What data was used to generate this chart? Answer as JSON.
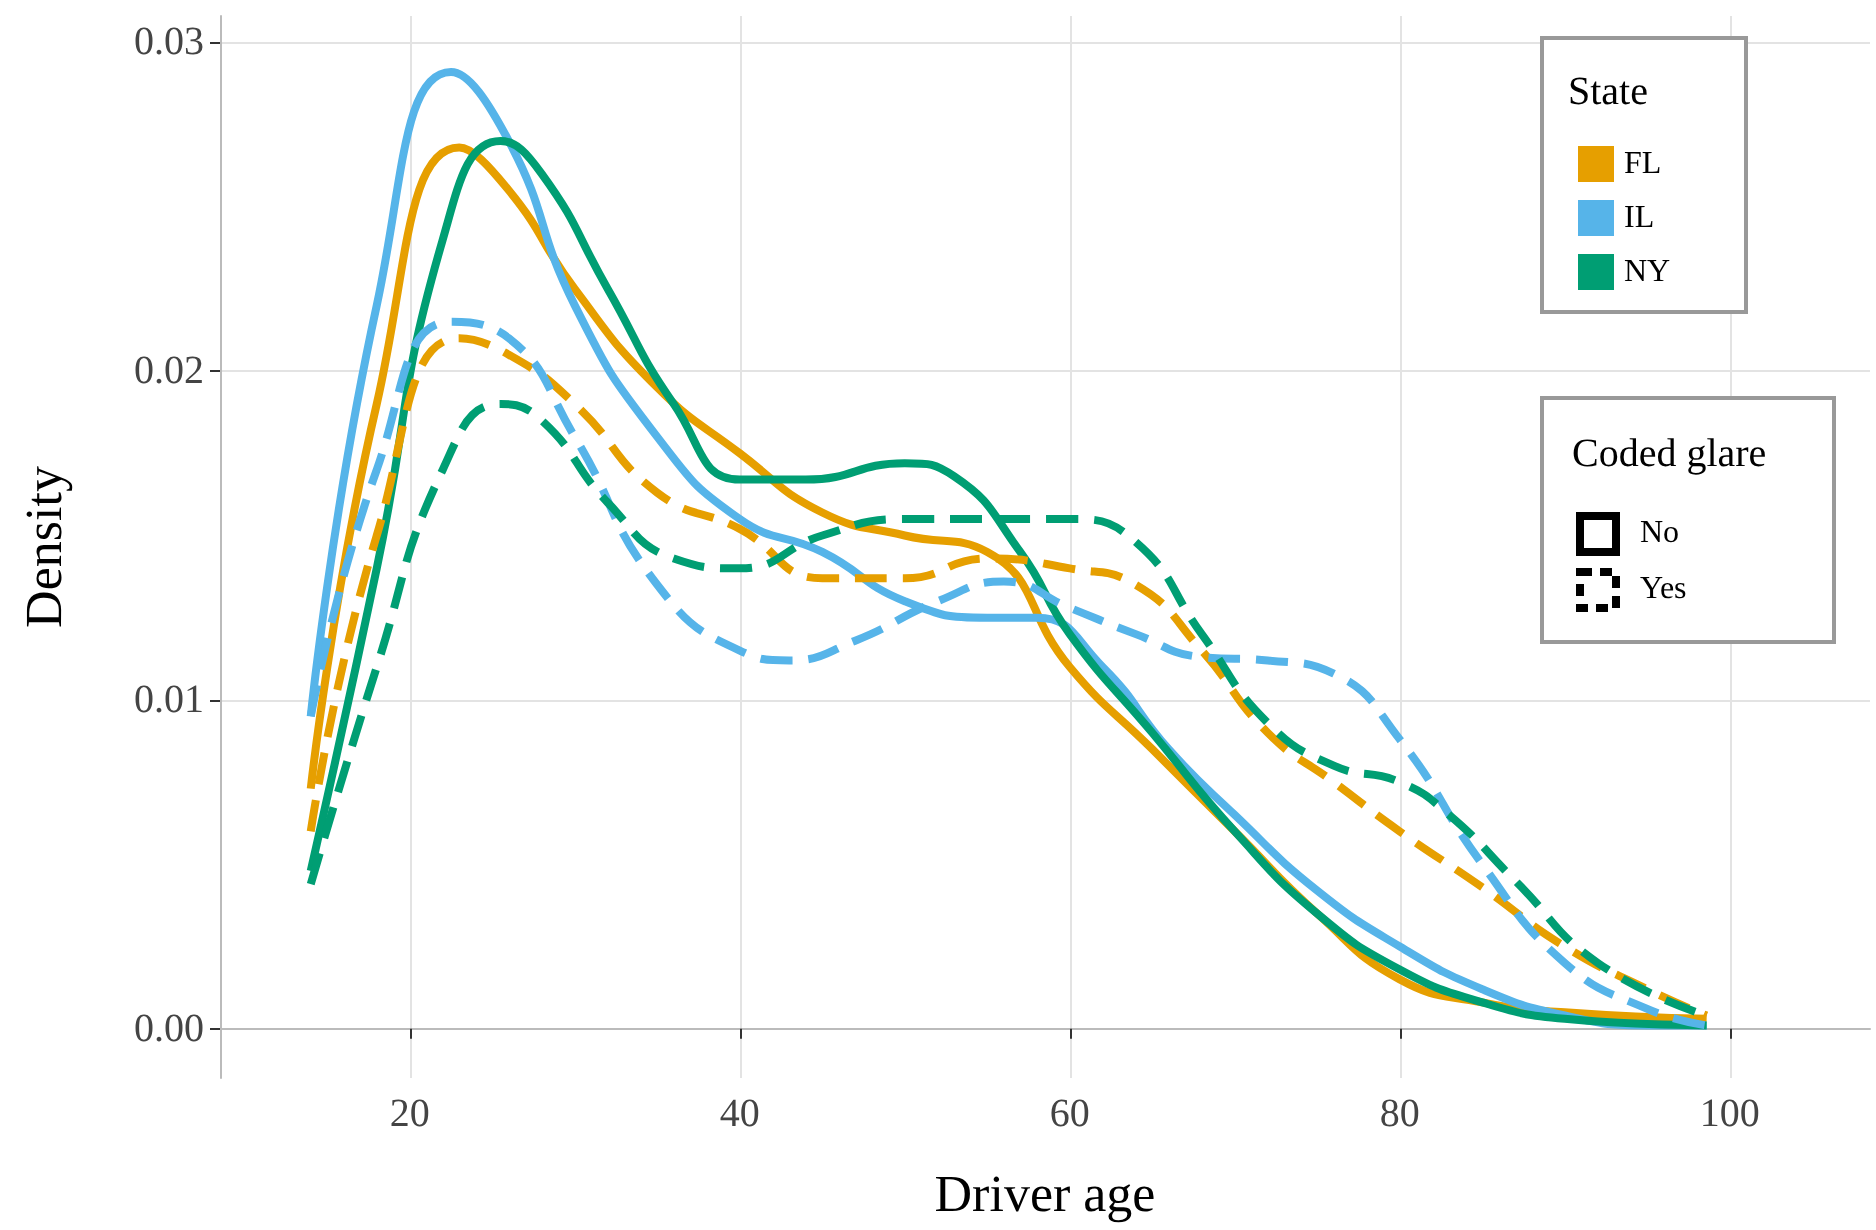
{
  "chart_data": {
    "type": "line",
    "xlabel": "Driver age",
    "ylabel": "Density",
    "legend_title": "State",
    "xlim": [
      8.5,
      108.5
    ],
    "ylim": [
      -0.0015,
      0.0308
    ],
    "xticks": [
      20,
      40,
      60,
      80,
      100
    ],
    "yticks": [
      {
        "value": 0,
        "label": "0.00"
      },
      {
        "value": 0.01,
        "label": "0.01"
      },
      {
        "value": 0.02,
        "label": "0.02"
      },
      {
        "value": 0.03,
        "label": "0.03"
      }
    ],
    "grid": true,
    "legend": "top right",
    "marker": "none",
    "annotations": [
      "Coded glare",
      "No",
      "Yes"
    ],
    "series": [
      {
        "name": "FL",
        "color": "#e69f00",
        "line_style": "solid",
        "x": [
          14,
          18,
          23,
          26,
          30,
          35,
          40,
          45,
          50,
          55,
          60,
          65,
          70,
          75,
          80,
          85,
          90,
          98.6
        ],
        "values": [
          0.0073,
          0.019,
          0.0268,
          0.0255,
          0.0225,
          0.0195,
          0.0175,
          0.0157,
          0.015,
          0.0145,
          0.011,
          0.0085,
          0.006,
          0.0035,
          0.0015,
          0.0008,
          0.0005,
          0.0003
        ]
      },
      {
        "name": "IL",
        "color": "#56b4e9",
        "line_style": "solid",
        "x": [
          14,
          18,
          22.5,
          26,
          30,
          35,
          40,
          45,
          50,
          55,
          58,
          62,
          66,
          70,
          75,
          80,
          85,
          90,
          95,
          98.6
        ],
        "values": [
          0.0095,
          0.022,
          0.0291,
          0.027,
          0.022,
          0.018,
          0.0155,
          0.0145,
          0.013,
          0.0125,
          0.0125,
          0.011,
          0.0085,
          0.0065,
          0.0042,
          0.0025,
          0.0012,
          0.0004,
          0.0001,
          0.0001
        ]
      },
      {
        "name": "NY",
        "color": "#009e73",
        "line_style": "solid",
        "x": [
          14,
          18,
          22,
          25.5,
          28,
          32,
          36,
          40,
          44,
          50,
          53,
          57,
          60,
          65,
          70,
          75,
          80,
          85,
          90,
          98.6
        ],
        "values": [
          0.0048,
          0.014,
          0.024,
          0.027,
          0.026,
          0.0225,
          0.019,
          0.0167,
          0.0167,
          0.0172,
          0.0168,
          0.0145,
          0.012,
          0.009,
          0.006,
          0.0035,
          0.0018,
          0.0008,
          0.0003,
          0.0001
        ]
      },
      {
        "color": "#e69f00",
        "line_style": "dashed",
        "x": [
          14,
          18,
          23,
          26,
          30,
          35,
          40,
          45,
          50,
          55,
          60,
          64,
          68,
          72,
          76,
          80,
          85,
          90,
          95,
          98.6
        ],
        "values": [
          0.006,
          0.015,
          0.021,
          0.0205,
          0.019,
          0.0163,
          0.0152,
          0.0137,
          0.0137,
          0.0143,
          0.014,
          0.0135,
          0.0115,
          0.009,
          0.0075,
          0.006,
          0.0043,
          0.0025,
          0.0012,
          0.0004
        ]
      },
      {
        "color": "#56b4e9",
        "line_style": "dashed",
        "x": [
          14,
          18,
          22.5,
          26,
          30,
          35,
          40,
          43,
          47,
          52,
          56,
          60,
          64,
          68,
          72,
          76,
          80,
          85,
          90,
          95,
          98.6
        ],
        "values": [
          0.0095,
          0.017,
          0.0215,
          0.021,
          0.018,
          0.0135,
          0.0115,
          0.0112,
          0.0118,
          0.013,
          0.0136,
          0.0128,
          0.012,
          0.0113,
          0.0112,
          0.0108,
          0.0088,
          0.005,
          0.002,
          0.0006,
          0.0001
        ]
      },
      {
        "color": "#009e73",
        "line_style": "dashed",
        "x": [
          14,
          18,
          22,
          25.5,
          28,
          32,
          36,
          40,
          45,
          50,
          55,
          60,
          64,
          68,
          72,
          76,
          80,
          83,
          87,
          92,
          98.6
        ],
        "values": [
          0.0044,
          0.011,
          0.017,
          0.019,
          0.0185,
          0.016,
          0.0143,
          0.014,
          0.015,
          0.0155,
          0.0155,
          0.0155,
          0.0148,
          0.012,
          0.0093,
          0.008,
          0.0075,
          0.0065,
          0.0045,
          0.002,
          0.0004
        ]
      }
    ]
  }
}
